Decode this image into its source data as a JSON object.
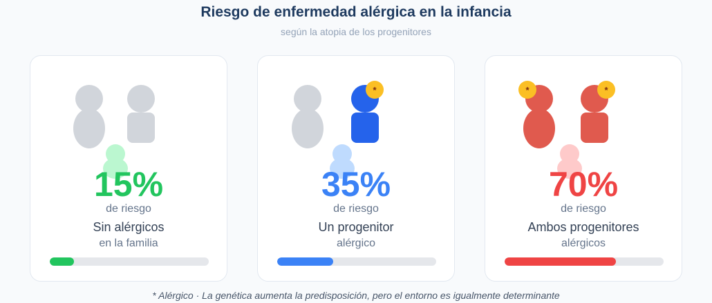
{
  "header": {
    "title": "Riesgo de enfermedad alérgica en la infancia",
    "subtitle": "según la atopia de los progenitores"
  },
  "cards": [
    {
      "percent": "15%",
      "risk_label": "de riesgo",
      "line1": "Sin alérgicos",
      "line2": "en la familia",
      "risk_fraction": 0.15,
      "accent_color": "#22c55e",
      "child_color": "#bbf7d0"
    },
    {
      "percent": "35%",
      "risk_label": "de riesgo",
      "line1": "Un progenitor",
      "line2": "alérgico",
      "risk_fraction": 0.35,
      "accent_color": "#3b82f6",
      "parent_color": "#2563eb",
      "child_color": "#bfdbfe",
      "badge": "*"
    },
    {
      "percent": "70%",
      "risk_label": "de riesgo",
      "line1": "Ambos progenitores",
      "line2": "alérgicos",
      "risk_fraction": 0.7,
      "accent_color": "#ef4444",
      "parent_color": "#e05a4e",
      "child_color": "#fecaca",
      "badge": "*"
    }
  ],
  "colors": {
    "healthy_parent": "#d1d5db"
  },
  "footnote": "* Alérgico · La genética aumenta la predisposición, pero el entorno es igualmente determinante"
}
